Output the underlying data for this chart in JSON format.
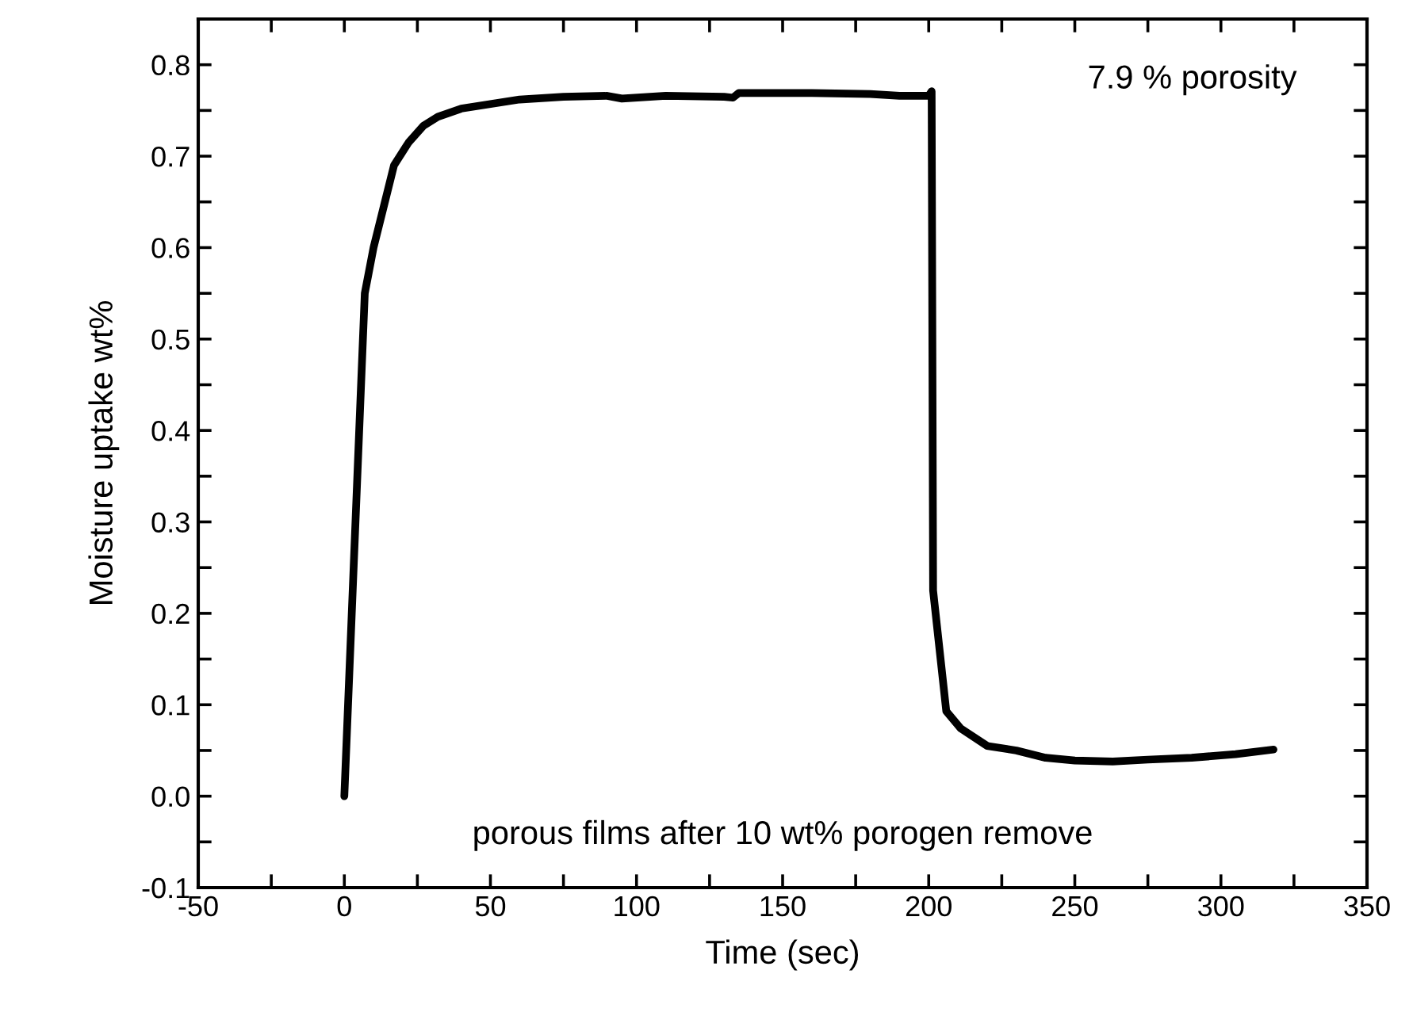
{
  "chart_data": {
    "type": "line",
    "xlabel": "Time (sec)",
    "ylabel": "Moisture uptake wt%",
    "annotations": [
      "7.9 % porosity",
      "porous films after 10 wt% porogen remove"
    ],
    "series": [
      {
        "color": "#000000",
        "x": [
          0,
          7,
          10,
          17,
          22,
          27,
          32,
          40,
          50,
          60,
          75,
          90,
          95,
          110,
          130,
          133,
          135,
          160,
          180,
          190,
          200,
          201,
          201.5,
          206,
          211,
          220,
          230,
          240,
          250,
          263,
          275,
          290,
          305,
          318
        ],
        "values": [
          0,
          0.55,
          0.6,
          0.69,
          0.715,
          0.733,
          0.743,
          0.752,
          0.757,
          0.762,
          0.765,
          0.766,
          0.763,
          0.766,
          0.765,
          0.764,
          0.769,
          0.769,
          0.768,
          0.766,
          0.766,
          0.771,
          0.225,
          0.093,
          0.074,
          0.055,
          0.05,
          0.042,
          0.039,
          0.038,
          0.04,
          0.042,
          0.046,
          0.051
        ]
      }
    ],
    "xlim": [
      -50,
      350
    ],
    "ylim": [
      -0.1,
      0.85
    ],
    "xticks": [
      -50,
      {
        "value": -25,
        "label": null
      },
      0,
      {
        "value": 25,
        "label": null
      },
      50,
      {
        "value": 75,
        "label": null
      },
      100,
      {
        "value": 125,
        "label": null
      },
      150,
      {
        "value": 175,
        "label": null
      },
      200,
      {
        "value": 225,
        "label": null
      },
      250,
      {
        "value": 275,
        "label": null
      },
      300,
      {
        "value": 325,
        "label": null
      },
      350
    ],
    "yticks": [
      {
        "value": -0.1,
        "label": "-0.1"
      },
      {
        "value": -0.05,
        "label": null
      },
      {
        "value": 0,
        "label": "0.0"
      },
      {
        "value": 0.05,
        "label": null
      },
      0.1,
      {
        "value": 0.15,
        "label": null
      },
      0.2,
      {
        "value": 0.25,
        "label": null
      },
      0.3,
      {
        "value": 0.35,
        "label": null
      },
      0.4,
      {
        "value": 0.45,
        "label": null
      },
      0.5,
      {
        "value": 0.55,
        "label": null
      },
      0.6,
      {
        "value": 0.65,
        "label": null
      },
      0.7,
      {
        "value": 0.75,
        "label": null
      },
      0.8
    ],
    "grid": false,
    "legend": false,
    "marker": "none",
    "line_style": "solid"
  }
}
